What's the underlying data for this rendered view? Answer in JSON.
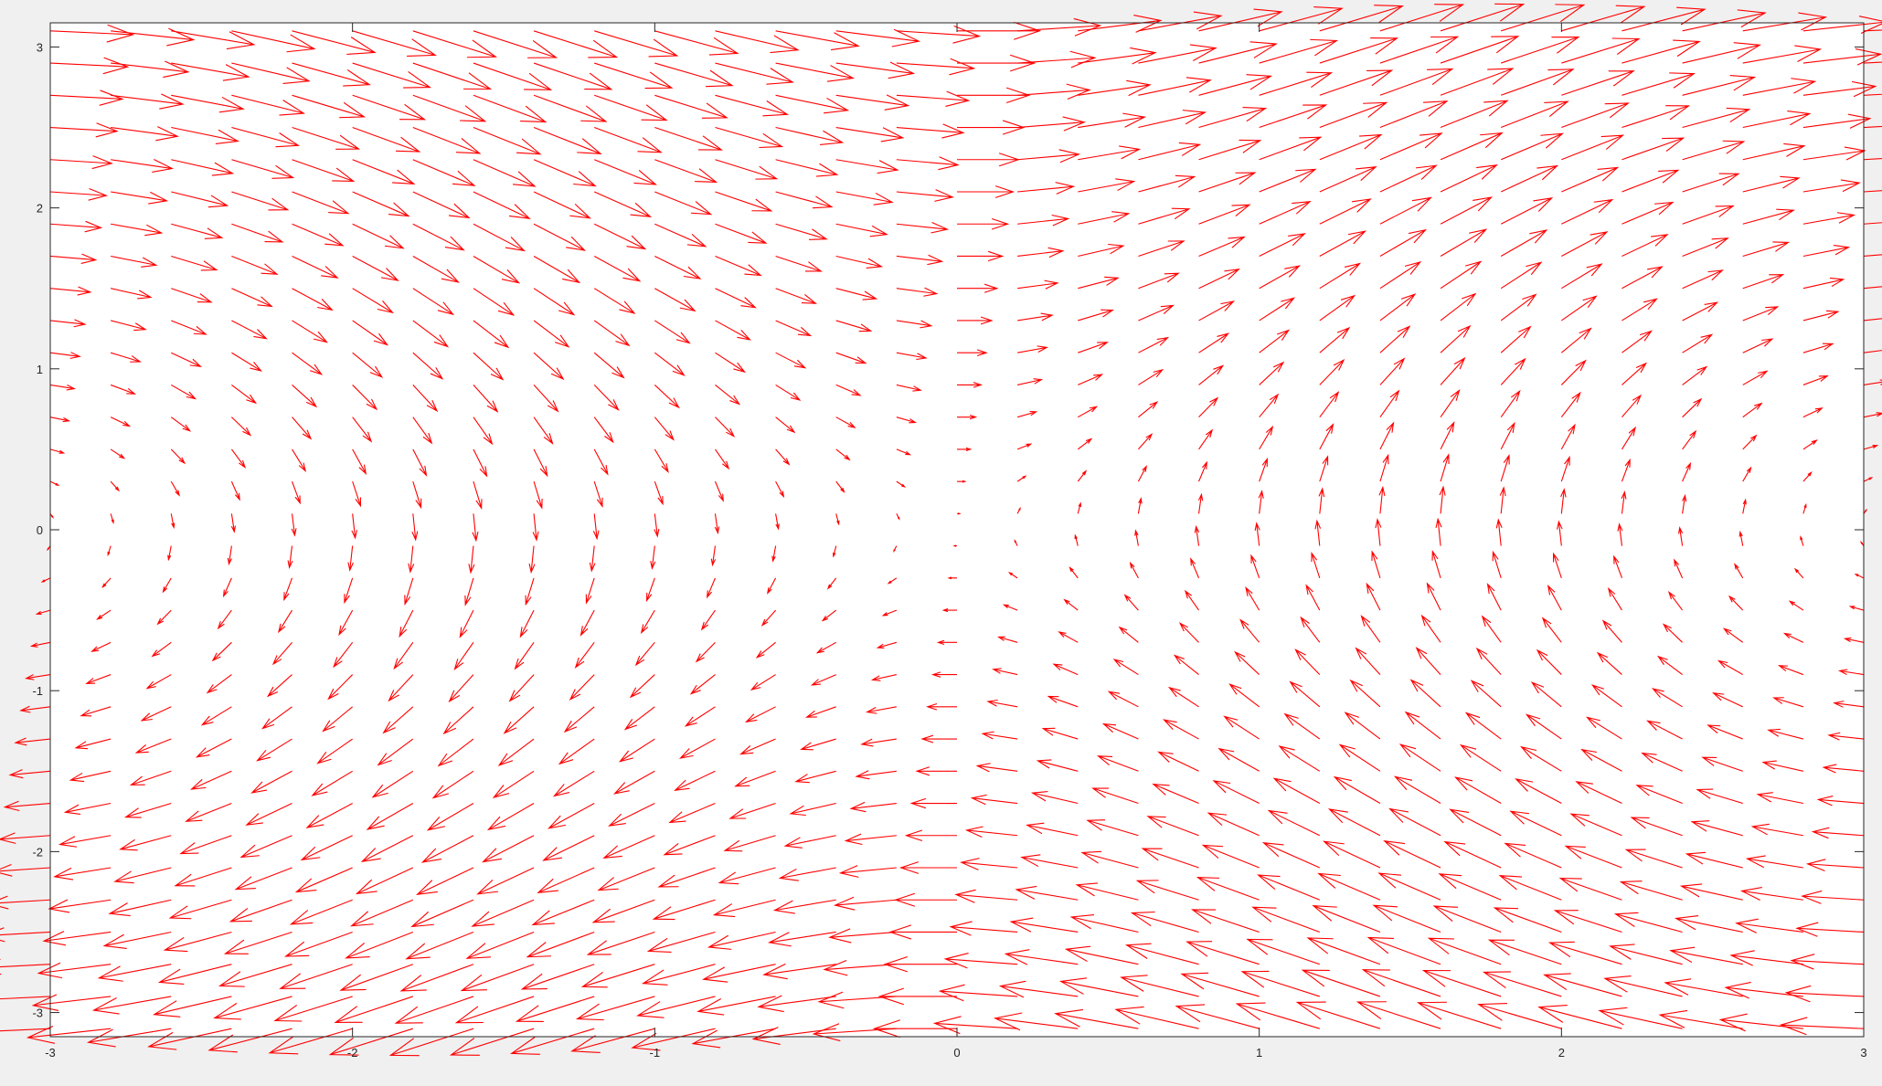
{
  "chart_data": {
    "type": "quiver",
    "title": "",
    "xlabel": "",
    "ylabel": "",
    "xlim": [
      -3,
      3
    ],
    "ylim": [
      -3.15,
      3.15
    ],
    "xticks": [
      -3,
      -2,
      -1,
      0,
      1,
      2,
      3
    ],
    "yticks": [
      -3,
      -2,
      -1,
      0,
      1,
      2,
      3
    ],
    "xtick_labels": [
      "-3",
      "-2",
      "-1",
      "0",
      "1",
      "2",
      "3"
    ],
    "ytick_labels": [
      "-3",
      "-2",
      "-1",
      "0",
      "1",
      "2",
      "3"
    ],
    "grid": false,
    "field": {
      "u": "y",
      "v": "sin(x)",
      "x_range": [
        -3,
        3
      ],
      "x_step": 0.2,
      "y_range": [
        -3.1,
        3.1
      ],
      "y_step": 0.2
    },
    "series": [
      {
        "color": "#ff0000"
      }
    ]
  }
}
